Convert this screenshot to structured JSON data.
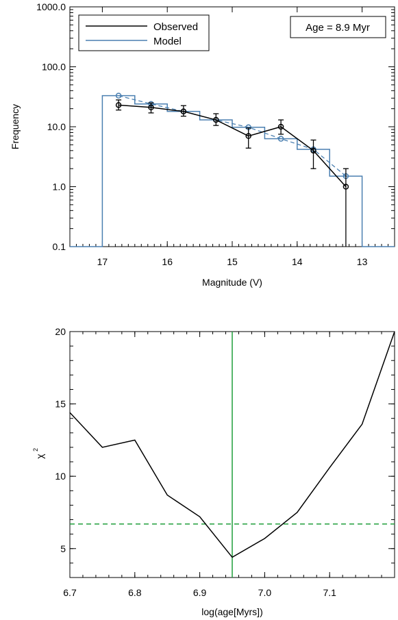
{
  "chart_data": [
    {
      "type": "line",
      "xlabel": "Magnitude (V)",
      "ylabel": "Frequency",
      "xlim": [
        17.5,
        12.5
      ],
      "ylim": [
        0.1,
        1000
      ],
      "yscale": "log",
      "x_ticks": [
        17,
        16,
        15,
        14,
        13
      ],
      "x_tick_labels": [
        "17",
        "16",
        "15",
        "14",
        "13"
      ],
      "y_ticks": [
        0.1,
        1,
        10,
        100,
        1000
      ],
      "y_tick_labels": [
        "0.1",
        "1.0",
        "10.0",
        "100.0",
        "1000.0"
      ],
      "legend": {
        "placement": "top-left",
        "entries": [
          {
            "label": "Observed",
            "color": "#000000"
          },
          {
            "label": "Model",
            "color": "#4a7fb0"
          }
        ]
      },
      "annotation": "Age = 8.9 Myr",
      "series": [
        {
          "name": "Observed",
          "color": "#000000",
          "x": [
            16.75,
            16.25,
            15.75,
            15.25,
            14.75,
            14.25,
            13.75,
            13.25
          ],
          "y": [
            23,
            21,
            18,
            13,
            7,
            10,
            4,
            1
          ],
          "err_low": [
            19,
            17,
            15,
            10.5,
            4.4,
            7.5,
            2.0,
            0.1
          ],
          "err_high": [
            28,
            25,
            22.5,
            16.5,
            9.5,
            13,
            6,
            2
          ]
        },
        {
          "name": "Model",
          "color": "#4a7fb0",
          "style": "step",
          "bin_edges": [
            17.5,
            17.0,
            16.5,
            16.0,
            15.5,
            15.0,
            14.5,
            14.0,
            13.5,
            13.0,
            12.5
          ],
          "y": [
            0.1,
            33,
            24,
            18,
            13,
            9.8,
            6.3,
            4.2,
            1.5,
            0.1
          ]
        },
        {
          "name": "Model",
          "color": "#4a7fb0",
          "style": "dashed-circles",
          "x": [
            16.75,
            16.25,
            15.75,
            15.25,
            14.75,
            14.25,
            13.75,
            13.25
          ],
          "y": [
            33,
            24,
            18,
            13,
            9.8,
            6.3,
            4.2,
            1.5
          ]
        }
      ]
    },
    {
      "type": "line",
      "xlabel": "log(age[Myrs])",
      "ylabel": "χ",
      "ylabel_sup": "2",
      "xlim": [
        6.7,
        7.2
      ],
      "ylim": [
        3,
        20
      ],
      "x_ticks": [
        6.7,
        6.8,
        6.9,
        7.0,
        7.1
      ],
      "x_tick_labels": [
        "6.7",
        "6.8",
        "6.9",
        "7.0",
        "7.1"
      ],
      "y_ticks": [
        5,
        10,
        15,
        20
      ],
      "y_tick_labels": [
        "5",
        "10",
        "15",
        "20"
      ],
      "series": [
        {
          "color": "#000000",
          "x": [
            6.7,
            6.75,
            6.8,
            6.85,
            6.9,
            6.95,
            7.0,
            7.05,
            7.1,
            7.15,
            7.2
          ],
          "y": [
            14.4,
            12.0,
            12.5,
            8.7,
            7.2,
            4.4,
            5.7,
            7.5,
            10.6,
            13.6,
            20.0
          ]
        }
      ],
      "vline": {
        "x": 6.95,
        "color": "#1f9e3a"
      },
      "hline": {
        "y": 6.7,
        "color": "#1f9e3a",
        "style": "dashed"
      }
    }
  ]
}
